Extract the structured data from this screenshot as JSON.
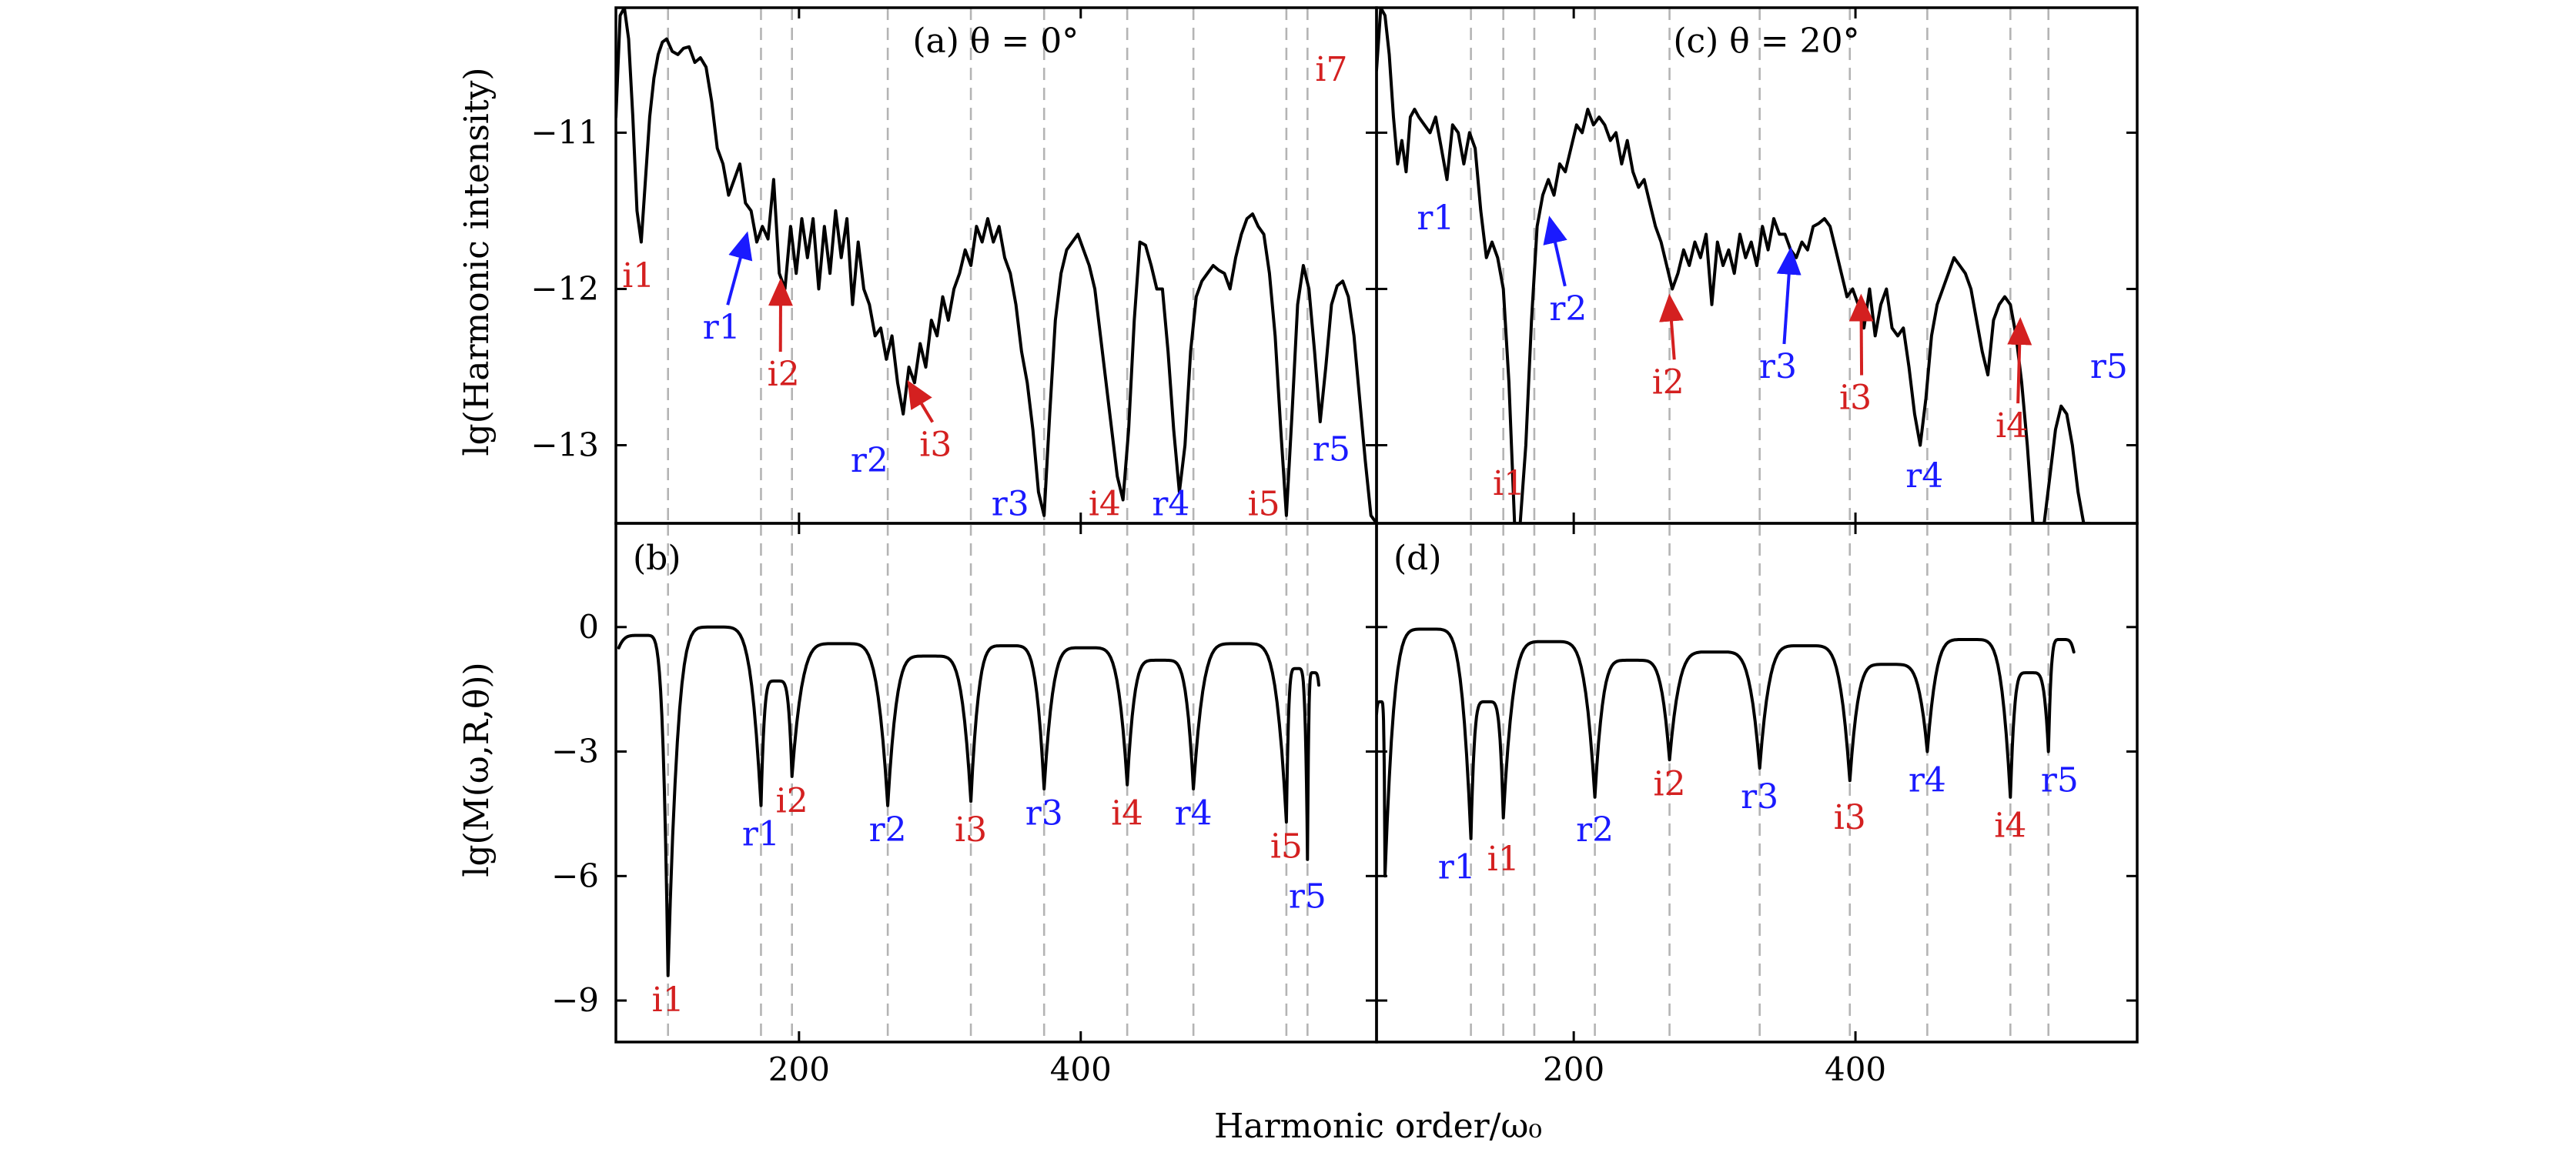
{
  "figure": {
    "xlabel": "Harmonic order/ω₀",
    "ylabel_top": "lg(Harmonic intensity)",
    "ylabel_bottom": "lg(M(ω,R,θ))"
  },
  "chart_data": [
    {
      "id": "a",
      "type": "line",
      "title": "(a) θ = 0°",
      "xlim": [
        70,
        610
      ],
      "ylim": [
        -13.5,
        -10.2
      ],
      "xticks": [
        200,
        400
      ],
      "yticks": [
        -11,
        -12,
        -13
      ],
      "ytick_labels": [
        "−11",
        "−12",
        "−13"
      ],
      "vlines": [
        107,
        173,
        195,
        263,
        322,
        374,
        433,
        480,
        546,
        561
      ],
      "series": [
        {
          "x": [
            70,
            73,
            76,
            79,
            82,
            85,
            88,
            91,
            94,
            97,
            100,
            103,
            106,
            110,
            114,
            118,
            122,
            126,
            130,
            134,
            138,
            142,
            146,
            150,
            154,
            158,
            162,
            166,
            170,
            174,
            178,
            182,
            186,
            190,
            194,
            198,
            202,
            206,
            210,
            214,
            218,
            222,
            226,
            230,
            234,
            238,
            242,
            246,
            250,
            254,
            258,
            262,
            266,
            270,
            274,
            278,
            282,
            286,
            290,
            294,
            298,
            302,
            306,
            310,
            314,
            318,
            322,
            326,
            330,
            334,
            338,
            342,
            346,
            350,
            354,
            358,
            362,
            366,
            370,
            374,
            378,
            382,
            386,
            390,
            394,
            398,
            402,
            406,
            410,
            414,
            418,
            422,
            426,
            430,
            434,
            438,
            442,
            446,
            450,
            454,
            458,
            462,
            466,
            470,
            474,
            478,
            482,
            486,
            490,
            494,
            498,
            502,
            506,
            510,
            514,
            518,
            522,
            526,
            530,
            534,
            538,
            542,
            546,
            550,
            554,
            558,
            562,
            566,
            570,
            574,
            578,
            582,
            586,
            590,
            594,
            598,
            602,
            606,
            610
          ],
          "y": [
            -10.9,
            -10.25,
            -10.2,
            -10.4,
            -10.9,
            -11.5,
            -11.7,
            -11.3,
            -10.9,
            -10.65,
            -10.5,
            -10.42,
            -10.4,
            -10.48,
            -10.5,
            -10.46,
            -10.45,
            -10.55,
            -10.52,
            -10.58,
            -10.8,
            -11.1,
            -11.2,
            -11.4,
            -11.3,
            -11.2,
            -11.45,
            -11.5,
            -11.7,
            -11.6,
            -11.68,
            -11.3,
            -11.9,
            -12.0,
            -11.6,
            -11.9,
            -11.55,
            -11.8,
            -11.55,
            -12.0,
            -11.6,
            -11.9,
            -11.5,
            -11.8,
            -11.55,
            -12.1,
            -11.7,
            -12.0,
            -12.1,
            -12.3,
            -12.25,
            -12.45,
            -12.3,
            -12.6,
            -12.8,
            -12.5,
            -12.6,
            -12.35,
            -12.5,
            -12.2,
            -12.3,
            -12.05,
            -12.2,
            -12.0,
            -11.9,
            -11.75,
            -11.85,
            -11.6,
            -11.7,
            -11.55,
            -11.7,
            -11.6,
            -11.8,
            -11.9,
            -12.1,
            -12.4,
            -12.6,
            -12.9,
            -13.3,
            -13.45,
            -12.8,
            -12.2,
            -11.9,
            -11.75,
            -11.7,
            -11.65,
            -11.75,
            -11.85,
            -12.0,
            -12.3,
            -12.6,
            -12.9,
            -13.2,
            -13.35,
            -12.9,
            -12.2,
            -11.7,
            -11.72,
            -11.85,
            -12.0,
            -12.0,
            -12.4,
            -12.9,
            -13.3,
            -13.0,
            -12.4,
            -12.05,
            -11.95,
            -11.9,
            -11.85,
            -11.88,
            -11.9,
            -12.0,
            -11.8,
            -11.65,
            -11.55,
            -11.52,
            -11.6,
            -11.65,
            -11.9,
            -12.3,
            -12.9,
            -13.45,
            -12.8,
            -12.1,
            -11.85,
            -12.0,
            -12.4,
            -12.85,
            -12.5,
            -12.1,
            -11.98,
            -11.95,
            -12.05,
            -12.3,
            -12.7,
            -13.1,
            -13.45,
            -13.5
          ]
        }
      ],
      "annotations": [
        {
          "text": "i1",
          "color": "#d42020",
          "x": 86,
          "y": -11.92
        },
        {
          "text": "r1",
          "color": "#1a1aff",
          "x": 145,
          "y": -12.25,
          "arrow_to": [
            163,
            -11.65
          ]
        },
        {
          "text": "i2",
          "color": "#d42020",
          "x": 189,
          "y": -12.55,
          "arrow_to": [
            187,
            -11.95
          ]
        },
        {
          "text": "r2",
          "color": "#1a1aff",
          "x": 250,
          "y": -13.1
        },
        {
          "text": "i3",
          "color": "#d42020",
          "x": 297,
          "y": -13.0,
          "arrow_to": [
            278,
            -12.6
          ]
        },
        {
          "text": "r3",
          "color": "#1a1aff",
          "x": 350,
          "y": -13.38
        },
        {
          "text": "i4",
          "color": "#d42020",
          "x": 417,
          "y": -13.38
        },
        {
          "text": "r4",
          "color": "#1a1aff",
          "x": 464,
          "y": -13.38
        },
        {
          "text": "i5",
          "color": "#d42020",
          "x": 530,
          "y": -13.38
        },
        {
          "text": "r5",
          "color": "#1a1aff",
          "x": 578,
          "y": -13.03
        },
        {
          "text": "i7",
          "color": "#d42020",
          "x": 578,
          "y": -10.6
        }
      ]
    },
    {
      "id": "c",
      "type": "line",
      "title": "(c) θ = 20°",
      "xlim": [
        60,
        600
      ],
      "ylim": [
        -13.5,
        -10.2
      ],
      "xticks": [
        200,
        400
      ],
      "yticks": [
        -11,
        -12,
        -13
      ],
      "vlines": [
        127,
        150,
        172,
        215,
        268,
        332,
        396,
        451,
        510,
        537
      ],
      "series": [
        {
          "x": [
            60,
            63,
            66,
            69,
            72,
            75,
            78,
            81,
            84,
            87,
            90,
            94,
            98,
            102,
            106,
            110,
            114,
            118,
            122,
            126,
            130,
            134,
            138,
            142,
            146,
            150,
            154,
            158,
            162,
            166,
            170,
            174,
            178,
            182,
            186,
            190,
            194,
            198,
            202,
            206,
            210,
            214,
            218,
            222,
            226,
            230,
            234,
            238,
            242,
            246,
            250,
            254,
            258,
            262,
            266,
            270,
            274,
            278,
            282,
            286,
            290,
            294,
            298,
            302,
            306,
            310,
            314,
            318,
            322,
            326,
            330,
            334,
            338,
            342,
            346,
            350,
            354,
            358,
            362,
            366,
            370,
            374,
            378,
            382,
            386,
            390,
            394,
            398,
            402,
            406,
            410,
            414,
            418,
            422,
            426,
            430,
            434,
            438,
            442,
            446,
            450,
            454,
            458,
            462,
            466,
            470,
            474,
            478,
            482,
            486,
            490,
            494,
            498,
            502,
            506,
            510,
            514,
            518,
            522,
            526,
            530,
            534,
            538,
            542,
            546,
            550,
            554,
            558,
            562,
            566
          ],
          "y": [
            -10.6,
            -10.2,
            -10.25,
            -10.5,
            -10.9,
            -11.2,
            -11.05,
            -11.25,
            -10.9,
            -10.85,
            -10.9,
            -10.95,
            -11.0,
            -10.9,
            -11.1,
            -11.3,
            -10.95,
            -11.0,
            -11.2,
            -11.0,
            -11.1,
            -11.5,
            -11.8,
            -11.7,
            -11.8,
            -12.0,
            -12.6,
            -13.5,
            -13.5,
            -13.0,
            -12.2,
            -11.6,
            -11.4,
            -11.3,
            -11.4,
            -11.2,
            -11.25,
            -11.1,
            -10.95,
            -11.0,
            -10.85,
            -10.95,
            -10.9,
            -10.95,
            -11.05,
            -11.0,
            -11.2,
            -11.05,
            -11.25,
            -11.35,
            -11.3,
            -11.45,
            -11.6,
            -11.7,
            -11.85,
            -12.0,
            -11.9,
            -11.75,
            -11.85,
            -11.7,
            -11.8,
            -11.65,
            -12.1,
            -11.7,
            -11.85,
            -11.75,
            -11.9,
            -11.65,
            -11.8,
            -11.7,
            -11.85,
            -11.6,
            -11.75,
            -11.55,
            -11.65,
            -11.65,
            -11.75,
            -11.8,
            -11.7,
            -11.75,
            -11.6,
            -11.58,
            -11.55,
            -11.6,
            -11.75,
            -11.9,
            -12.05,
            -12.0,
            -12.1,
            -12.25,
            -12.0,
            -12.3,
            -12.1,
            -12.0,
            -12.25,
            -12.3,
            -12.25,
            -12.5,
            -12.8,
            -13.0,
            -12.7,
            -12.3,
            -12.1,
            -12.0,
            -11.9,
            -11.8,
            -11.85,
            -11.9,
            -12.0,
            -12.2,
            -12.4,
            -12.55,
            -12.2,
            -12.1,
            -12.05,
            -12.1,
            -12.3,
            -12.6,
            -13.0,
            -13.5,
            -13.5,
            -13.5,
            -13.2,
            -12.9,
            -12.75,
            -12.8,
            -13.0,
            -13.3,
            -13.5,
            -13.5
          ]
        }
      ],
      "annotations": [
        {
          "text": "r1",
          "color": "#1a1aff",
          "x": 102,
          "y": -11.55
        },
        {
          "text": "r2",
          "color": "#1a1aff",
          "x": 196,
          "y": -12.13,
          "arrow_to": [
            183,
            -11.55
          ]
        },
        {
          "text": "i2",
          "color": "#d42020",
          "x": 267,
          "y": -12.6,
          "arrow_to": [
            268,
            -12.05
          ]
        },
        {
          "text": "r3",
          "color": "#1a1aff",
          "x": 345,
          "y": -12.5,
          "arrow_to": [
            354,
            -11.75
          ]
        },
        {
          "text": "i3",
          "color": "#d42020",
          "x": 400,
          "y": -12.7,
          "arrow_to": [
            404,
            -12.05
          ]
        },
        {
          "text": "r4",
          "color": "#1a1aff",
          "x": 449,
          "y": -13.2
        },
        {
          "text": "i4",
          "color": "#d42020",
          "x": 511,
          "y": -12.88,
          "arrow_to": [
            517,
            -12.2
          ]
        },
        {
          "text": "r5",
          "color": "#1a1aff",
          "x": 580,
          "y": -12.5
        },
        {
          "text": "i1",
          "color": "#d42020",
          "x": 154,
          "y": -13.25
        }
      ]
    },
    {
      "id": "b",
      "type": "line",
      "title": "(b)",
      "xlim": [
        70,
        610
      ],
      "ylim": [
        -10,
        2.5
      ],
      "xticks": [
        200,
        400
      ],
      "yticks": [
        0,
        -3,
        -6,
        -9
      ],
      "ytick_labels": [
        "0",
        "−3",
        "−6",
        "−9"
      ],
      "vlines": [
        107,
        173,
        195,
        263,
        322,
        374,
        433,
        480,
        546,
        561
      ],
      "dips": [
        {
          "x": 107,
          "depth": -8.4
        },
        {
          "x": 173,
          "depth": -4.3
        },
        {
          "x": 195,
          "depth": -3.6
        },
        {
          "x": 263,
          "depth": -4.3
        },
        {
          "x": 322,
          "depth": -4.2
        },
        {
          "x": 374,
          "depth": -3.9
        },
        {
          "x": 433,
          "depth": -3.8
        },
        {
          "x": 480,
          "depth": -3.9
        },
        {
          "x": 546,
          "depth": -4.7
        },
        {
          "x": 561,
          "depth": -5.6
        }
      ],
      "peaks": [
        -0.2,
        0.0,
        -1.3,
        -0.4,
        -0.7,
        -0.45,
        -0.5,
        -0.8,
        -0.4,
        -1.0,
        -1.1
      ],
      "x_start": 72,
      "x_end": 569,
      "annotations": [
        {
          "text": "i1",
          "color": "#d42020",
          "x": 107,
          "y": -9.0
        },
        {
          "text": "r1",
          "color": "#1a1aff",
          "x": 173,
          "y": -5.0
        },
        {
          "text": "i2",
          "color": "#d42020",
          "x": 195,
          "y": -4.2
        },
        {
          "text": "r2",
          "color": "#1a1aff",
          "x": 263,
          "y": -4.9
        },
        {
          "text": "i3",
          "color": "#d42020",
          "x": 322,
          "y": -4.9
        },
        {
          "text": "r3",
          "color": "#1a1aff",
          "x": 374,
          "y": -4.5
        },
        {
          "text": "i4",
          "color": "#d42020",
          "x": 433,
          "y": -4.5
        },
        {
          "text": "r4",
          "color": "#1a1aff",
          "x": 480,
          "y": -4.5
        },
        {
          "text": "i5",
          "color": "#d42020",
          "x": 546,
          "y": -5.3
        },
        {
          "text": "r5",
          "color": "#1a1aff",
          "x": 561,
          "y": -6.5
        }
      ]
    },
    {
      "id": "d",
      "type": "line",
      "title": "(d)",
      "xlim": [
        60,
        600
      ],
      "ylim": [
        -10,
        2.5
      ],
      "xticks": [
        200,
        400
      ],
      "yticks": [
        0,
        -3,
        -6,
        -9
      ],
      "vlines": [
        127,
        150,
        172,
        215,
        268,
        332,
        396,
        451,
        510,
        537
      ],
      "dips": [
        {
          "x": 66,
          "depth": -6.0
        },
        {
          "x": 127,
          "depth": -5.1
        },
        {
          "x": 150,
          "depth": -4.6
        },
        {
          "x": 215,
          "depth": -4.1
        },
        {
          "x": 268,
          "depth": -3.2
        },
        {
          "x": 332,
          "depth": -3.4
        },
        {
          "x": 396,
          "depth": -3.7
        },
        {
          "x": 451,
          "depth": -3.0
        },
        {
          "x": 510,
          "depth": -4.1
        },
        {
          "x": 537,
          "depth": -3.0
        }
      ],
      "peaks": [
        -1.8,
        -0.05,
        -1.8,
        -0.35,
        -0.8,
        -0.6,
        -0.45,
        -0.9,
        -0.3,
        -1.1,
        -0.3
      ],
      "x_start": 60,
      "x_end": 555,
      "annotations": [
        {
          "text": "r1",
          "color": "#1a1aff",
          "x": 117,
          "y": -5.8
        },
        {
          "text": "i1",
          "color": "#d42020",
          "x": 150,
          "y": -5.6
        },
        {
          "text": "r2",
          "color": "#1a1aff",
          "x": 215,
          "y": -4.9
        },
        {
          "text": "i2",
          "color": "#d42020",
          "x": 268,
          "y": -3.8
        },
        {
          "text": "r3",
          "color": "#1a1aff",
          "x": 332,
          "y": -4.1
        },
        {
          "text": "i3",
          "color": "#d42020",
          "x": 396,
          "y": -4.6
        },
        {
          "text": "r4",
          "color": "#1a1aff",
          "x": 451,
          "y": -3.7
        },
        {
          "text": "i4",
          "color": "#d42020",
          "x": 510,
          "y": -4.8
        },
        {
          "text": "r5",
          "color": "#1a1aff",
          "x": 545,
          "y": -3.7
        }
      ]
    }
  ]
}
